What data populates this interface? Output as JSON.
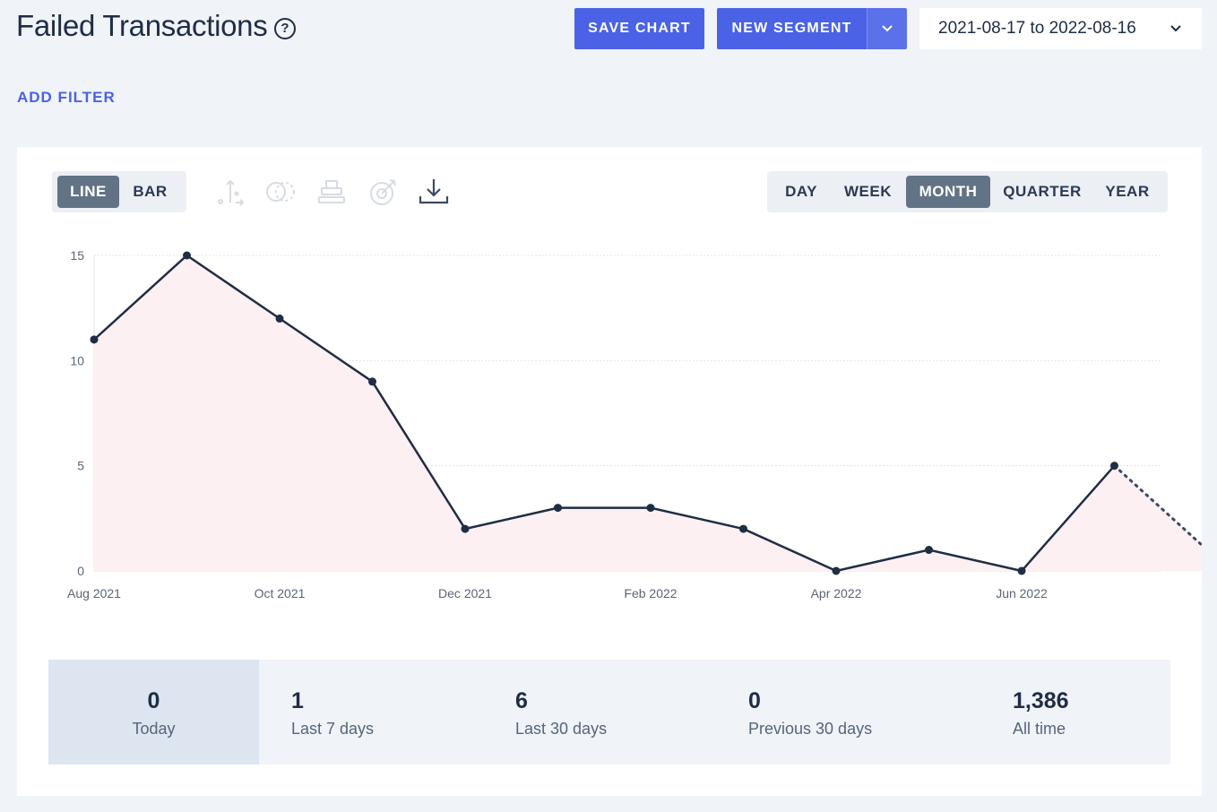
{
  "header": {
    "title": "Failed Transactions",
    "help_glyph": "?",
    "save_chart": "SAVE CHART",
    "new_segment": "NEW SEGMENT",
    "date_range": "2021-08-17 to 2022-08-16"
  },
  "filters": {
    "add_filter": "ADD FILTER"
  },
  "chart_types": [
    {
      "label": "LINE",
      "active": true
    },
    {
      "label": "BAR",
      "active": false
    }
  ],
  "toolbar_icons": [
    "axis-icon",
    "compare-icon",
    "stack-icon",
    "goal-icon",
    "download-icon"
  ],
  "periods": [
    {
      "label": "DAY",
      "active": false
    },
    {
      "label": "WEEK",
      "active": false
    },
    {
      "label": "MONTH",
      "active": true
    },
    {
      "label": "QUARTER",
      "active": false
    },
    {
      "label": "YEAR",
      "active": false
    }
  ],
  "colors": {
    "accent": "#4a62e6",
    "line": "#1f2d45",
    "area_fill": "#fdf0f3",
    "active_toggle": "#627385"
  },
  "chart_data": {
    "type": "line",
    "x": [
      "2021-08",
      "2021-09",
      "2021-10",
      "2021-11",
      "2021-12",
      "2022-01",
      "2022-02",
      "2022-03",
      "2022-04",
      "2022-05",
      "2022-06",
      "2022-07",
      "2022-08"
    ],
    "values": [
      11,
      15,
      12,
      9,
      2,
      3,
      3,
      2,
      0,
      1,
      0,
      5,
      1
    ],
    "x_tick_labels": [
      "Aug 2021",
      "Oct 2021",
      "Dec 2021",
      "Feb 2022",
      "Apr 2022",
      "Jun 2022"
    ],
    "y_ticks": [
      0,
      5,
      10,
      15
    ],
    "ylim": [
      0,
      15
    ],
    "grid": "horizontal dotted",
    "last_segment": "dotted",
    "area_fill": true
  },
  "stats": [
    {
      "value": "0",
      "label": "Today",
      "active": true
    },
    {
      "value": "1",
      "label": "Last 7 days",
      "active": false
    },
    {
      "value": "6",
      "label": "Last 30 days",
      "active": false
    },
    {
      "value": "0",
      "label": "Previous 30 days",
      "active": false
    },
    {
      "value": "1,386",
      "label": "All time",
      "active": false
    }
  ]
}
